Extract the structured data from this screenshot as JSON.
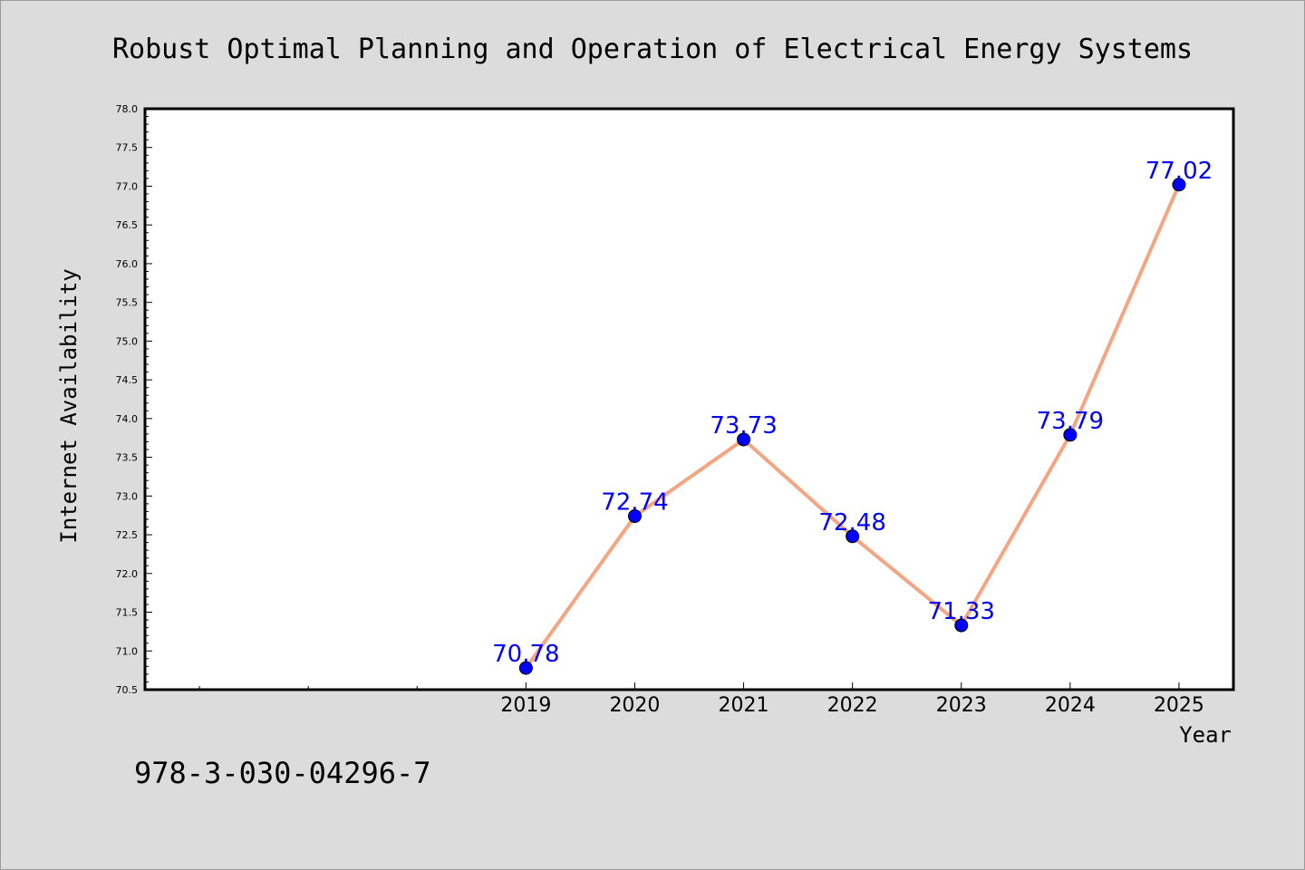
{
  "isbn": "978-3-030-04296-7",
  "chart_data": {
    "type": "line",
    "title": "Robust Optimal Planning and Operation of Electrical Energy Systems",
    "xlabel": "Year",
    "ylabel": "Internet Availability",
    "x": [
      "2019",
      "2020",
      "2021",
      "2022",
      "2023",
      "2024",
      "2025"
    ],
    "x_positions": [
      3.5,
      4.5,
      5.5,
      6.5,
      7.5,
      8.5,
      9.5
    ],
    "xlim": [
      0,
      10
    ],
    "minor_x_ticks": [
      0.5,
      1.5,
      2.5
    ],
    "series": [
      {
        "values": [
          70.78,
          72.74,
          73.73,
          72.48,
          71.33,
          73.79,
          77.02
        ],
        "labels": [
          "70.78",
          "72.74",
          "73.73",
          "72.48",
          "71.33",
          "73.79",
          "77.02"
        ],
        "line_color": "#f4a582",
        "marker_color": "#0000ff"
      }
    ],
    "ylim": [
      70.5,
      78.0
    ],
    "yticks": [
      "70.5",
      "71.0",
      "71.5",
      "72.0",
      "72.5",
      "73.0",
      "73.5",
      "74.0",
      "74.5",
      "75.0",
      "75.5",
      "76.0",
      "76.5",
      "77.0",
      "77.5",
      "78.0"
    ],
    "ytick_step": 0.5,
    "grid": false,
    "legend": "none"
  }
}
